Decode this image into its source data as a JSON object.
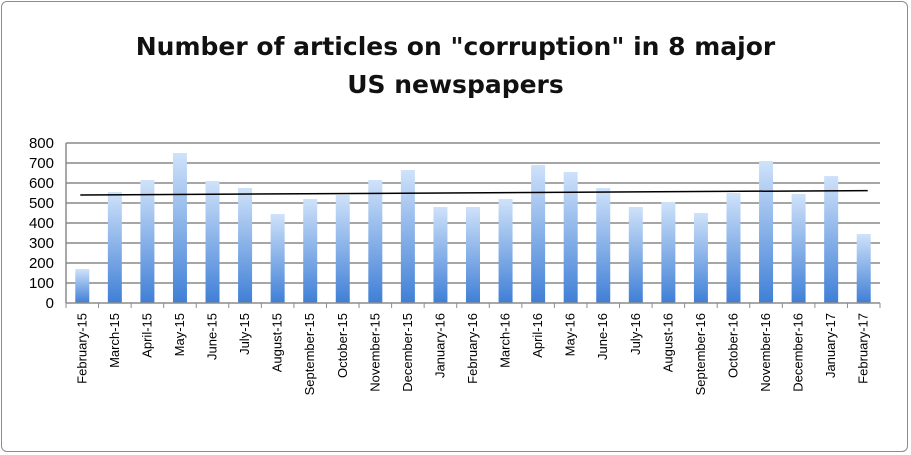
{
  "chart_data": {
    "type": "bar",
    "title_lines": [
      "Number of articles on \"corruption\" in 8 major",
      "US newspapers"
    ],
    "categories": [
      "February-15",
      "March-15",
      "April-15",
      "May-15",
      "June-15",
      "July-15",
      "August-15",
      "September-15",
      "October-15",
      "November-15",
      "December-15",
      "January-16",
      "February-16",
      "March-16",
      "April-16",
      "May-16",
      "June-16",
      "July-16",
      "August-16",
      "September-16",
      "October-16",
      "November-16",
      "December-16",
      "January-17",
      "February-17"
    ],
    "values": [
      170,
      555,
      615,
      750,
      610,
      575,
      445,
      520,
      540,
      615,
      665,
      480,
      480,
      520,
      690,
      655,
      575,
      480,
      505,
      450,
      550,
      710,
      545,
      635,
      345
    ],
    "ylim": [
      0,
      800
    ],
    "yticks": [
      0,
      100,
      200,
      300,
      400,
      500,
      600,
      700,
      800
    ],
    "trendline": {
      "start": 540,
      "end": 562
    },
    "grid": true,
    "colors": {
      "bar_top": "#cfe2fa",
      "bar_bottom": "#3f7fd6",
      "grid": "#a6a6a6",
      "trend": "#000000"
    }
  }
}
